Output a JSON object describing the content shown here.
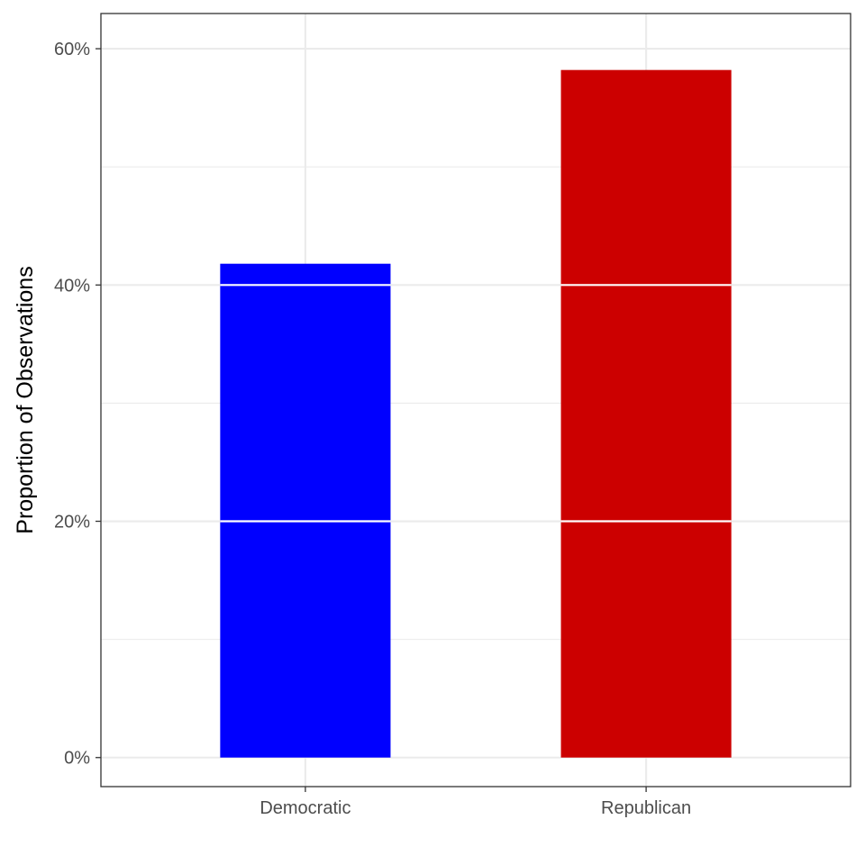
{
  "chart_data": {
    "type": "bar",
    "categories": [
      "Democratic",
      "Republican"
    ],
    "values": [
      0.418,
      0.582
    ],
    "colors": [
      "#0000ff",
      "#cc0000"
    ],
    "xlabel": "",
    "ylabel": "Proportion of Observations",
    "ylim": [
      -0.0246,
      0.6298
    ],
    "y_ticks": [
      0,
      0.2,
      0.4,
      0.6
    ],
    "y_tick_labels": [
      "0%",
      "20%",
      "40%",
      "60%"
    ],
    "y_minor_ticks": [
      0.1,
      0.3,
      0.5
    ],
    "bar_segment_lines": [
      0.2,
      0.4
    ],
    "grid": true,
    "legend": "none"
  }
}
